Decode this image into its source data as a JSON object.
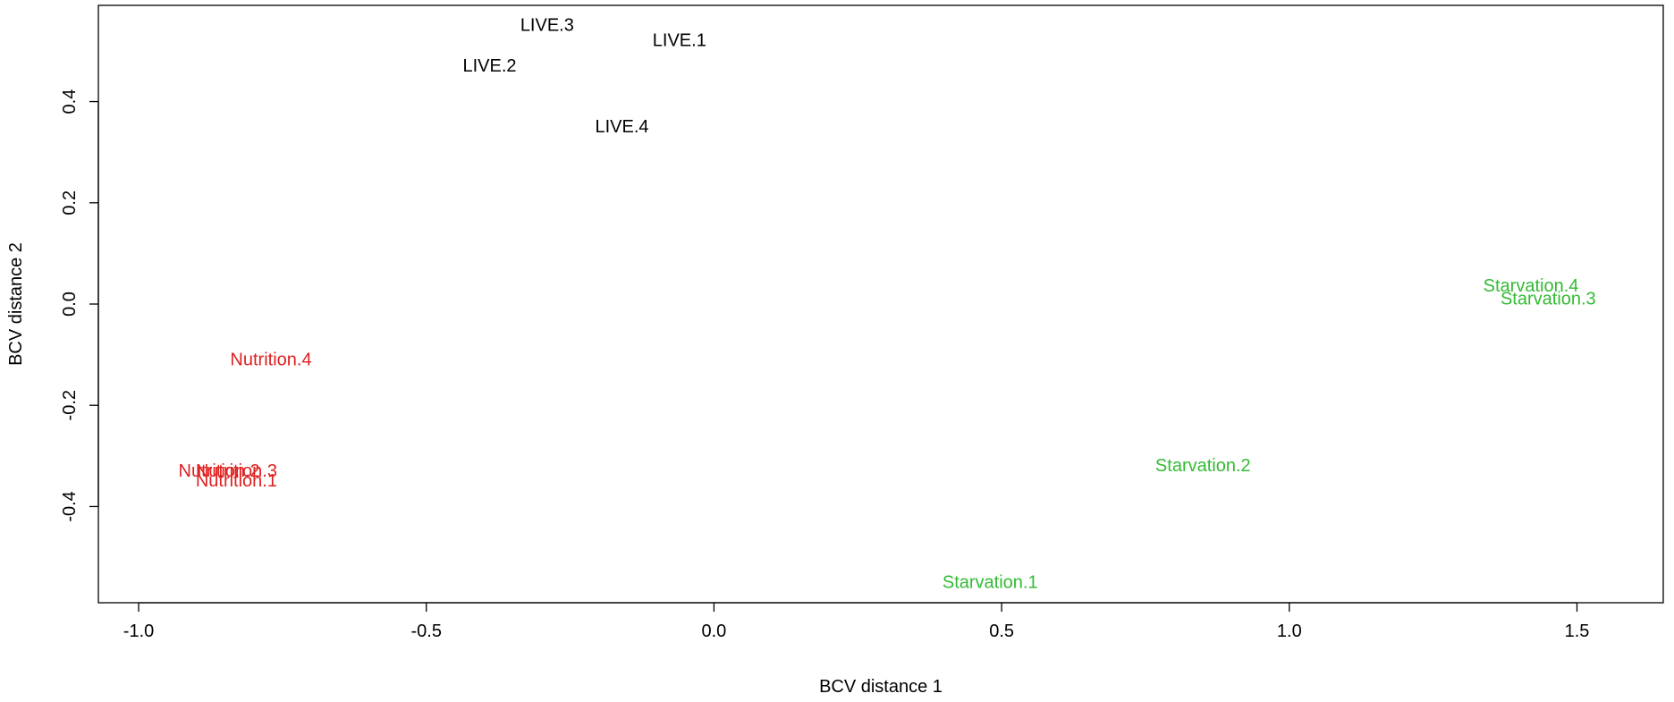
{
  "chart_data": {
    "type": "scatter",
    "title": "",
    "xlabel": "BCV distance 1",
    "ylabel": "BCV distance 2",
    "xlim": [
      -1.07,
      1.65
    ],
    "ylim": [
      -0.59,
      0.59
    ],
    "x_ticks": [
      -1.0,
      -0.5,
      0.0,
      0.5,
      1.0,
      1.5
    ],
    "x_tick_labels": [
      "-1.0",
      "-0.5",
      "0.0",
      "0.5",
      "1.0",
      "1.5"
    ],
    "y_ticks": [
      -0.4,
      -0.2,
      0.0,
      0.2,
      0.4
    ],
    "y_tick_labels": [
      "-0.4",
      "-0.2",
      "0.0",
      "0.2",
      "0.4"
    ],
    "grid": false,
    "legend": "none",
    "marker": "text-label",
    "series": [
      {
        "color": "#000000",
        "points": [
          {
            "label": "LIVE.1",
            "x": -0.06,
            "y": 0.52
          },
          {
            "label": "LIVE.2",
            "x": -0.39,
            "y": 0.47
          },
          {
            "label": "LIVE.3",
            "x": -0.29,
            "y": 0.55
          },
          {
            "label": "LIVE.4",
            "x": -0.16,
            "y": 0.35
          }
        ]
      },
      {
        "color": "#df2020",
        "points": [
          {
            "label": "Nutrition.1",
            "x": -0.83,
            "y": -0.35
          },
          {
            "label": "Nutrition.2",
            "x": -0.86,
            "y": -0.33
          },
          {
            "label": "Nutrition.3",
            "x": -0.83,
            "y": -0.33
          },
          {
            "label": "Nutrition.4",
            "x": -0.77,
            "y": -0.11
          }
        ]
      },
      {
        "color": "#33bb33",
        "points": [
          {
            "label": "Starvation.1",
            "x": 0.48,
            "y": -0.55
          },
          {
            "label": "Starvation.2",
            "x": 0.85,
            "y": -0.32
          },
          {
            "label": "Starvation.3",
            "x": 1.45,
            "y": 0.01
          },
          {
            "label": "Starvation.4",
            "x": 1.42,
            "y": 0.035
          }
        ]
      }
    ]
  }
}
